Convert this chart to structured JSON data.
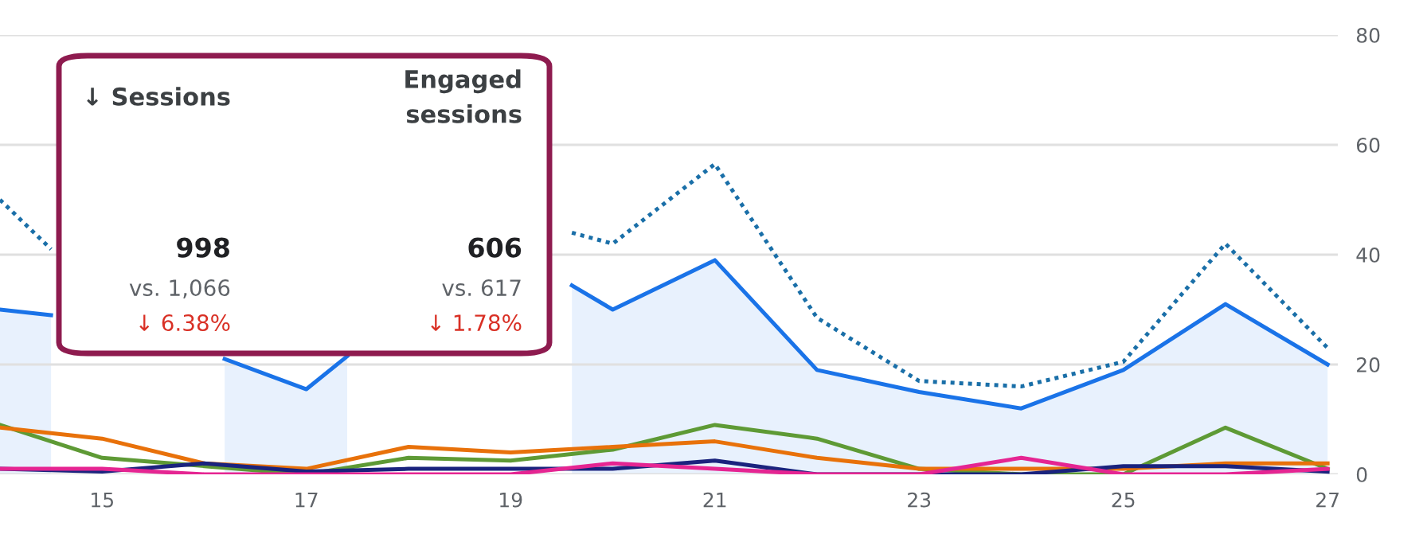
{
  "chart_data": {
    "type": "line",
    "x": [
      14,
      15,
      16,
      17,
      18,
      19,
      20,
      21,
      22,
      23,
      24,
      25,
      26,
      27
    ],
    "series": [
      {
        "type": "area",
        "color": "#1a73e8",
        "x": [
          14,
          14.5,
          15,
          16.2,
          17,
          17.4,
          18,
          19.6,
          20,
          21,
          22,
          23,
          24,
          25,
          26,
          27
        ],
        "values": [
          30,
          29,
          null,
          21,
          15.5,
          21.5,
          null,
          34.4,
          30,
          39,
          19,
          15,
          12,
          19,
          31,
          20
        ]
      },
      {
        "color": "#1a6fa8",
        "line_style": "dotted",
        "x": [
          14,
          14.5,
          15,
          19.6,
          20,
          21,
          22,
          23,
          24,
          25,
          26,
          27
        ],
        "values": [
          50,
          41,
          null,
          44,
          42,
          56.5,
          28.5,
          17,
          16,
          20.5,
          42,
          23
        ]
      },
      {
        "color": "#5e9a35",
        "values": [
          9,
          3,
          1.5,
          0,
          3,
          2.5,
          4.5,
          9,
          6.5,
          1,
          0,
          0,
          8.5,
          1
        ]
      },
      {
        "color": "#e8710a",
        "values": [
          8.5,
          6.5,
          2,
          1,
          5,
          4,
          5,
          6,
          3,
          1,
          1,
          1,
          2,
          2
        ]
      },
      {
        "color": "#1a237e",
        "values": [
          1,
          0.5,
          2,
          0.5,
          1,
          1,
          1,
          2.5,
          0,
          0,
          0,
          1.5,
          1.5,
          0.5
        ]
      },
      {
        "color": "#e52592",
        "values": [
          1,
          1,
          0,
          0,
          0,
          0,
          2,
          1,
          0,
          0,
          3,
          0,
          0,
          1
        ]
      }
    ],
    "xlim": [
      14,
      27.1
    ],
    "xticks": [
      15,
      17,
      19,
      21,
      23,
      25,
      27
    ],
    "ylim": [
      0,
      80
    ],
    "yticks": [
      0,
      20,
      40,
      60,
      80
    ],
    "grid": "y",
    "line_style": "solid",
    "legend": false,
    "annotations": [
      "↓ Sessions",
      "Engaged sessions",
      "998",
      "vs. 1,066",
      "↓ 6.38%",
      "606",
      "vs. 617",
      "↓ 1.78%"
    ]
  }
}
